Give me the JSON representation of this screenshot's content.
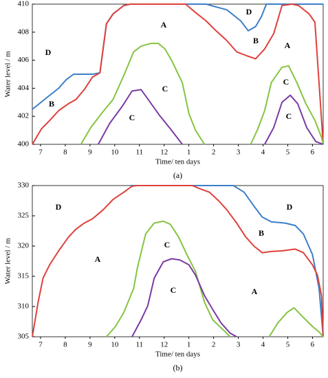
{
  "chart_data": [
    {
      "type": "line",
      "label": "(a)",
      "xlabel": "Time/ ten days",
      "ylabel": "Water level / m",
      "xlim": [
        0,
        35.3
      ],
      "ylim": [
        400,
        410
      ],
      "yticks": [
        400,
        402,
        404,
        406,
        408,
        410
      ],
      "xticks": [
        {
          "value": 1,
          "label": "7"
        },
        {
          "value": 4,
          "label": "8"
        },
        {
          "value": 7,
          "label": "9"
        },
        {
          "value": 10,
          "label": "10"
        },
        {
          "value": 13,
          "label": "11"
        },
        {
          "value": 16,
          "label": "12"
        },
        {
          "value": 19,
          "label": "1"
        },
        {
          "value": 22,
          "label": "2"
        },
        {
          "value": 25,
          "label": "3"
        },
        {
          "value": 28,
          "label": "4"
        },
        {
          "value": 31,
          "label": "5"
        },
        {
          "value": 34,
          "label": "6"
        }
      ],
      "annotations": [
        "D",
        "B",
        "A",
        "C",
        "C",
        "D",
        "B",
        "A",
        "C",
        "C"
      ],
      "series": [
        {
          "color": "#3b7ec8",
          "x": [
            0,
            1.9,
            3.2,
            4.1,
            5,
            7.3,
            8.2,
            9,
            9.8,
            11.1,
            11.9,
            21.1,
            22.3,
            23.6,
            25.3,
            26.2,
            27.1,
            27.8,
            28.4,
            35.3
          ],
          "values": [
            402.5,
            403.4,
            404,
            404.6,
            405,
            405,
            405.1,
            408.6,
            409.3,
            409.9,
            410,
            410,
            409.8,
            409.6,
            408.8,
            408.1,
            408.4,
            409.1,
            410,
            410
          ]
        },
        {
          "color": "#df3f3a",
          "x": [
            0,
            1.1,
            2.1,
            3.2,
            4.4,
            5.3,
            6.3,
            7.3,
            8.2,
            9,
            9.8,
            11.1,
            11.9,
            18.6,
            19.8,
            21.1,
            22.3,
            23.6,
            24.8,
            26.1,
            27.1,
            28.2,
            29.3,
            30.3,
            31.5,
            32.3,
            33.6,
            34.3,
            35.3
          ],
          "values": [
            400,
            401.1,
            401.7,
            402.4,
            402.9,
            403.2,
            403.9,
            404.8,
            405.1,
            408.6,
            409.3,
            409.9,
            410,
            410,
            409.4,
            408.8,
            408.1,
            407.4,
            406.6,
            406.3,
            406.1,
            406.8,
            407.9,
            409.9,
            410,
            409.9,
            409.3,
            408.7,
            400
          ]
        },
        {
          "color": "#86c340",
          "x": [
            5.9,
            7.1,
            8.4,
            9.8,
            11.1,
            12.3,
            13.2,
            14.4,
            15.3,
            16.1,
            16.9,
            18.2,
            19,
            19.8,
            20.9,
            23,
            26.5,
            27.3,
            28.2,
            29,
            30.3,
            31.1,
            32.1,
            33.2,
            34.3,
            35.1,
            35.3
          ],
          "values": [
            400,
            401.2,
            402.2,
            403.2,
            404.9,
            406.6,
            407,
            407.2,
            407.2,
            406.8,
            406,
            404.4,
            402.2,
            401,
            400,
            null,
            400,
            401,
            402.4,
            404.4,
            405.5,
            405.6,
            404.4,
            402.9,
            401.7,
            400.5,
            400
          ]
        },
        {
          "color": "#7a3aa3",
          "x": [
            8,
            9.4,
            10.9,
            12.1,
            13.2,
            14.3,
            15.4,
            16.9,
            18.2,
            23,
            28.2,
            29.3,
            30.3,
            31.3,
            32.2,
            33.3,
            34.4,
            35.3
          ],
          "values": [
            400,
            401.5,
            402.7,
            403.8,
            403.9,
            403,
            402.1,
            401,
            400,
            null,
            400,
            401.2,
            403,
            403.5,
            402.9,
            401.2,
            400.2,
            400
          ]
        }
      ]
    },
    {
      "type": "line",
      "label": "(b)",
      "xlabel": "Time/ ten days",
      "ylabel": "Water level / m",
      "xlim": [
        0,
        35.3
      ],
      "ylim": [
        305,
        330
      ],
      "yticks": [
        305,
        310,
        315,
        320,
        325,
        330
      ],
      "xticks": [
        {
          "value": 1,
          "label": "7"
        },
        {
          "value": 4,
          "label": "8"
        },
        {
          "value": 7,
          "label": "9"
        },
        {
          "value": 10,
          "label": "10"
        },
        {
          "value": 13,
          "label": "11"
        },
        {
          "value": 16,
          "label": "12"
        },
        {
          "value": 19,
          "label": "1"
        },
        {
          "value": 22,
          "label": "2"
        },
        {
          "value": 25,
          "label": "3"
        },
        {
          "value": 28,
          "label": "4"
        },
        {
          "value": 31,
          "label": "5"
        },
        {
          "value": 34,
          "label": "6"
        }
      ],
      "annotations": [
        "D",
        "A",
        "C",
        "C",
        "B",
        "D",
        "A"
      ],
      "series": [
        {
          "color": "#3b7ec8",
          "x": [
            11.9,
            24.4,
            25.7,
            26.9,
            27.9,
            29,
            30.7,
            31.9,
            32.9,
            34,
            34.8,
            35.3
          ],
          "values": [
            330,
            330,
            328.9,
            326.6,
            324.8,
            324,
            323.8,
            323.4,
            322,
            318.6,
            313,
            305
          ]
        },
        {
          "color": "#df3f3a",
          "x": [
            0,
            0.7,
            1.3,
            2.1,
            3.2,
            4.4,
            5.3,
            6.3,
            7.3,
            8.6,
            9.8,
            11.1,
            12.1,
            12.75,
            19.4,
            20.3,
            21.5,
            22.6,
            23.6,
            24.8,
            25.9,
            26.9,
            27.9,
            29,
            30.3,
            31.9,
            32.9,
            34,
            34.6,
            35.1,
            35.3
          ],
          "values": [
            305,
            310.7,
            314.7,
            316.9,
            319.2,
            321.5,
            322.8,
            323.8,
            324.5,
            326,
            327.7,
            328.9,
            329.9,
            330,
            330,
            329.5,
            328.9,
            327.5,
            326,
            323.8,
            321.5,
            320,
            318.9,
            319.1,
            319.2,
            319.5,
            318.9,
            316.9,
            315.2,
            311.8,
            305
          ]
        },
        {
          "color": "#86c340",
          "x": [
            9,
            10.1,
            11.1,
            12.3,
            12.75,
            13.75,
            14.8,
            15.9,
            16.75,
            17.75,
            18.75,
            19.8,
            20.9,
            21.9,
            23.2,
            24,
            26,
            28.75,
            29.8,
            30.9,
            31.75,
            32.75,
            34,
            34.8,
            35.3
          ],
          "values": [
            305,
            306.7,
            309,
            313,
            316.4,
            322,
            323.8,
            324.1,
            323.6,
            321.5,
            318.6,
            315.8,
            310.7,
            307.8,
            306.1,
            305,
            null,
            305,
            307.3,
            309,
            309.8,
            308.4,
            306.7,
            305.8,
            305
          ]
        },
        {
          "color": "#7a3aa3",
          "x": [
            12.1,
            13.2,
            14,
            14.8,
            15.9,
            16.9,
            17.9,
            19,
            19.8,
            20.9,
            21.9,
            22.9,
            24,
            24.8
          ],
          "values": [
            305,
            307.8,
            310.1,
            314.7,
            317.4,
            317.9,
            317.7,
            316.9,
            315.2,
            311.8,
            309.5,
            307.3,
            305.6,
            305
          ]
        }
      ]
    }
  ]
}
